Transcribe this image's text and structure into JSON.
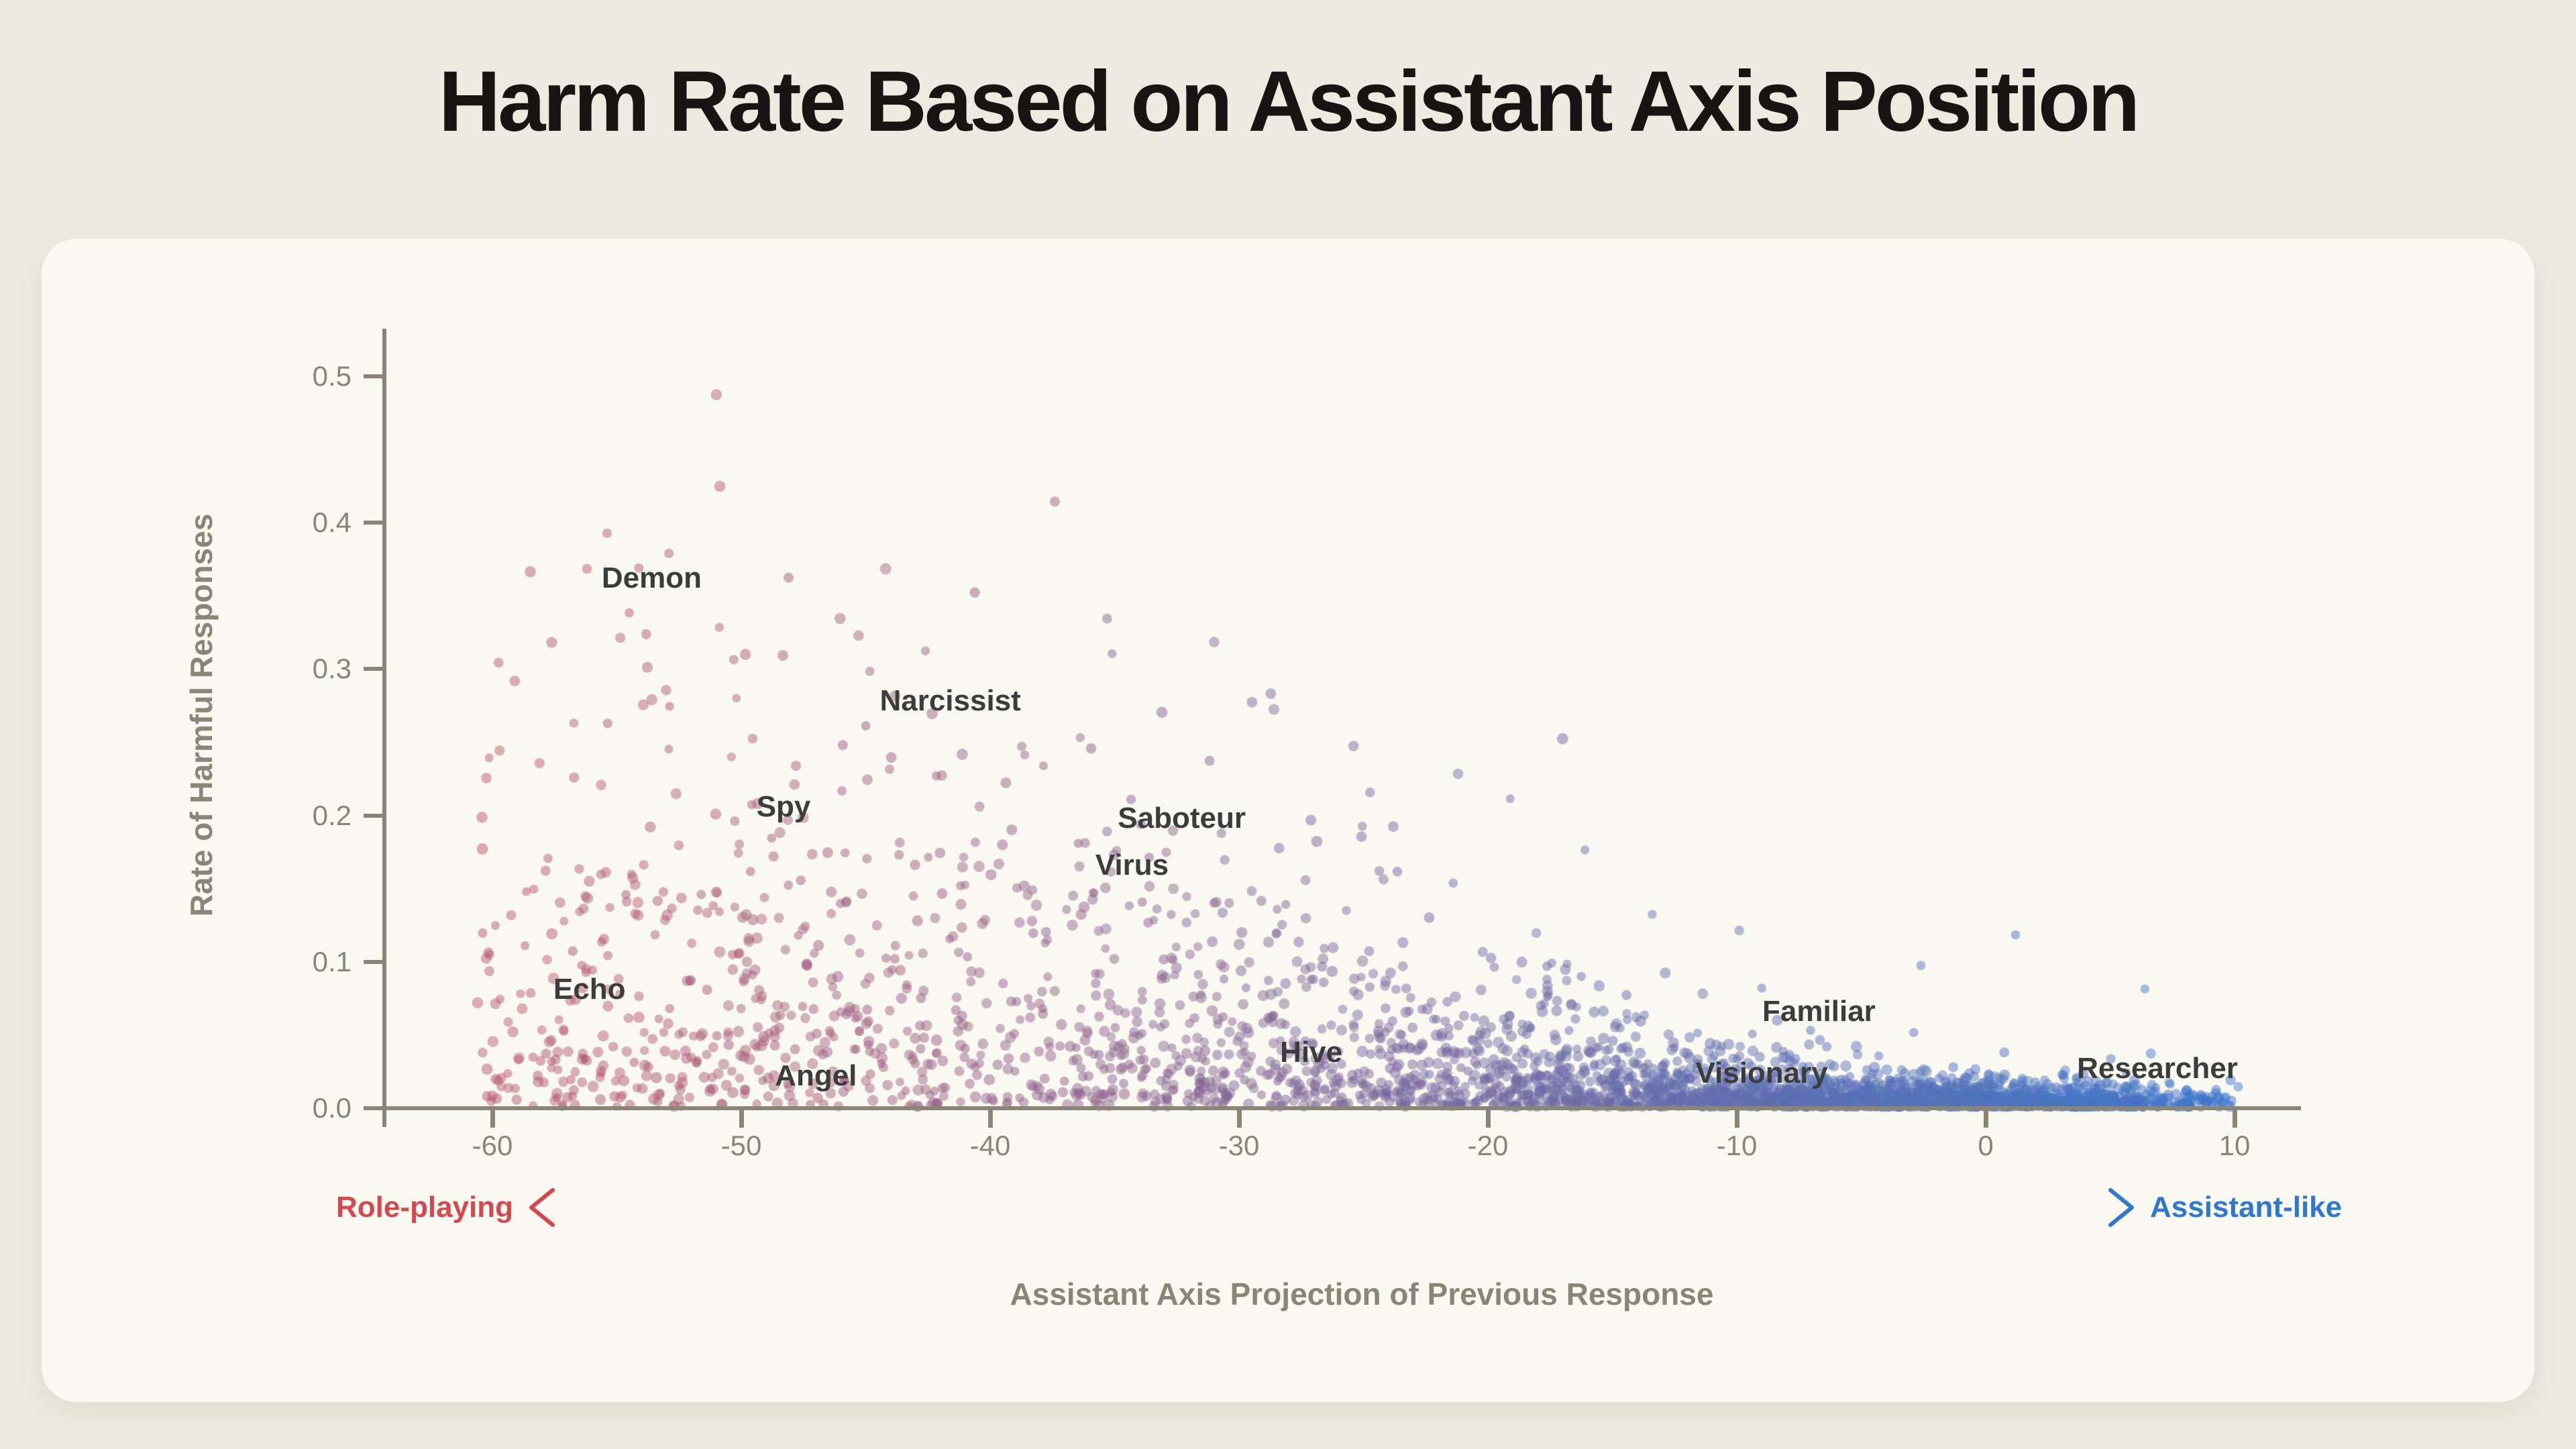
{
  "page": {
    "colors": {
      "background": "#ECEBE0",
      "card_background": "#FAF9F1",
      "title_text": "#161513",
      "axis": "#8A8577",
      "tick_text": "#8A8577",
      "persona_text": "#3C3C3C",
      "roleplay_red": "#D2494F",
      "assistant_blue": "#2F78CB"
    }
  },
  "chart_data": {
    "type": "scatter",
    "title": "Harm Rate Based on Assistant Axis Position",
    "xlabel": "Assistant Axis Projection of Previous Response",
    "ylabel": "Rate of Harmful Responses",
    "xlim": [
      -64,
      12.6
    ],
    "ylim": [
      0,
      0.53
    ],
    "grid": false,
    "legend": null,
    "x_tick_values": [
      -60,
      -50,
      -40,
      -30,
      -20,
      -10,
      0,
      10
    ],
    "x_tick_labels": [
      "-60",
      "-50",
      "-40",
      "-30",
      "-20",
      "-10",
      "0",
      "10"
    ],
    "y_tick_values": [
      0.0,
      0.1,
      0.2,
      0.3,
      0.4,
      0.5
    ],
    "y_tick_labels": [
      "0.0",
      "0.1",
      "0.2",
      "0.3",
      "0.4",
      "0.5"
    ],
    "direction_annotation": {
      "left_label": "Role-playing",
      "right_label": "Assistant-like",
      "left_color": "#D2494F",
      "right_color": "#2F78CB"
    },
    "persona_labels": [
      {
        "label": "Demon",
        "x": -53.6,
        "y": 0.362
      },
      {
        "label": "Narcissist",
        "x": -41.6,
        "y": 0.278
      },
      {
        "label": "Spy",
        "x": -48.3,
        "y": 0.206
      },
      {
        "label": "Saboteur",
        "x": -32.3,
        "y": 0.198
      },
      {
        "label": "Virus",
        "x": -34.3,
        "y": 0.166
      },
      {
        "label": "Echo",
        "x": -56.1,
        "y": 0.081
      },
      {
        "label": "Angel",
        "x": -47.0,
        "y": 0.022
      },
      {
        "label": "Hive",
        "x": -27.1,
        "y": 0.038
      },
      {
        "label": "Familiar",
        "x": -6.7,
        "y": 0.066
      },
      {
        "label": "Visionary",
        "x": -9.0,
        "y": 0.024
      },
      {
        "label": "Researcher",
        "x": 6.9,
        "y": 0.027
      }
    ],
    "notable_points": [
      [
        -51.0,
        0.487
      ],
      [
        -37.4,
        0.414
      ],
      [
        -56.2,
        0.368
      ],
      [
        -54.5,
        0.338
      ],
      [
        -48.1,
        0.362
      ],
      [
        -44.2,
        0.368
      ],
      [
        -50.3,
        0.306
      ],
      [
        -42.6,
        0.312
      ],
      [
        -35.3,
        0.334
      ],
      [
        -31.0,
        0.318
      ],
      [
        -33.1,
        0.27
      ],
      [
        -28.6,
        0.272
      ],
      [
        -25.4,
        0.247
      ],
      [
        -23.8,
        0.192
      ],
      [
        -21.2,
        0.228
      ],
      [
        -19.1,
        0.211
      ],
      [
        -17.0,
        0.252
      ],
      [
        -16.1,
        0.176
      ],
      [
        -13.4,
        0.132
      ],
      [
        -9.9,
        0.121
      ],
      [
        -2.6,
        0.097
      ],
      [
        1.2,
        0.118
      ],
      [
        6.4,
        0.081
      ]
    ],
    "point_cloud_spec": {
      "seed": 20,
      "n_points": 3400,
      "alpha": 0.48,
      "point_radius_px": [
        6.5,
        8.5
      ],
      "color_left": "#BE5668",
      "color_right": "#3D78CC",
      "x_density_profile": [
        [
          -60.5,
          0.3
        ],
        [
          -58,
          0.62
        ],
        [
          -55,
          0.8
        ],
        [
          -52,
          0.85
        ],
        [
          -49,
          0.8
        ],
        [
          -46,
          0.78
        ],
        [
          -43,
          0.75
        ],
        [
          -40,
          0.78
        ],
        [
          -37,
          0.8
        ],
        [
          -34,
          0.85
        ],
        [
          -31,
          0.88
        ],
        [
          -28,
          0.95
        ],
        [
          -25,
          1.0
        ],
        [
          -22,
          1.1
        ],
        [
          -19,
          1.3
        ],
        [
          -16,
          1.55
        ],
        [
          -13,
          1.85
        ],
        [
          -10,
          2.1
        ],
        [
          -7,
          2.35
        ],
        [
          -4,
          2.55
        ],
        [
          -1,
          2.65
        ],
        [
          2,
          2.45
        ],
        [
          4,
          2.1
        ],
        [
          6,
          1.6
        ],
        [
          8,
          0.9
        ],
        [
          9.5,
          0.35
        ],
        [
          10.5,
          0.08
        ]
      ],
      "y_exponential_scale_profile": [
        [
          -60.5,
          0.1
        ],
        [
          -55,
          0.098
        ],
        [
          -50,
          0.095
        ],
        [
          -45,
          0.085
        ],
        [
          -40,
          0.075
        ],
        [
          -35,
          0.062
        ],
        [
          -30,
          0.05
        ],
        [
          -26,
          0.042
        ],
        [
          -22,
          0.034
        ],
        [
          -18,
          0.026
        ],
        [
          -15,
          0.019
        ],
        [
          -12,
          0.014
        ],
        [
          -9,
          0.011
        ],
        [
          -6,
          0.009
        ],
        [
          -3,
          0.0075
        ],
        [
          0,
          0.0065
        ],
        [
          4,
          0.0055
        ],
        [
          10.5,
          0.0045
        ]
      ],
      "y_max_profile": [
        [
          -60.5,
          0.4
        ],
        [
          -54,
          0.46
        ],
        [
          -51,
          0.5
        ],
        [
          -47,
          0.4
        ],
        [
          -42,
          0.38
        ],
        [
          -38,
          0.42
        ],
        [
          -35,
          0.34
        ],
        [
          -31,
          0.33
        ],
        [
          -27,
          0.29
        ],
        [
          -23,
          0.26
        ],
        [
          -19,
          0.27
        ],
        [
          -16,
          0.19
        ],
        [
          -13,
          0.145
        ],
        [
          -10,
          0.125
        ],
        [
          -6,
          0.105
        ],
        [
          -2,
          0.1
        ],
        [
          2,
          0.12
        ],
        [
          5,
          0.085
        ],
        [
          8,
          0.05
        ],
        [
          10.5,
          0.03
        ]
      ]
    }
  }
}
